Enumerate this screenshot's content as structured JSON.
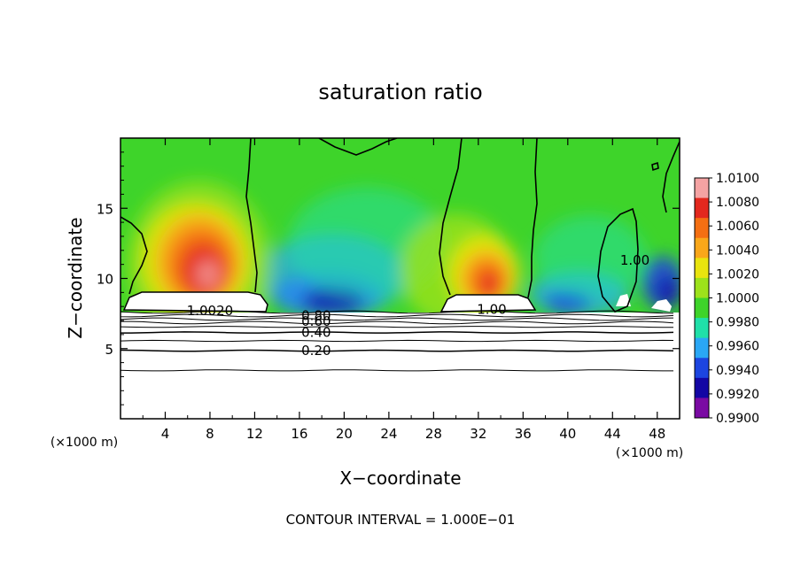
{
  "chart_data": {
    "type": "heatmap",
    "title": "saturation ratio",
    "xlabel": "X−coordinate",
    "ylabel": "Z−coordinate",
    "x_unit_left": "(×1000 m)",
    "x_unit_right": "(×1000 m)",
    "xlim": [
      0,
      50
    ],
    "ylim": [
      0,
      20
    ],
    "xticks": [
      4,
      8,
      12,
      16,
      20,
      24,
      28,
      32,
      36,
      40,
      44,
      48
    ],
    "yticks": [
      5,
      10,
      15
    ],
    "footer": "CONTOUR INTERVAL = 1.000E−01",
    "colorbar": {
      "labels": [
        "1.0100",
        "1.0080",
        "1.0060",
        "1.0040",
        "1.0020",
        "1.0000",
        "0.9980",
        "0.9960",
        "0.9940",
        "0.9920",
        "0.9900"
      ],
      "colors": [
        "#f4a3a3",
        "#e3281e",
        "#f46f12",
        "#f9a71a",
        "#e9e40f",
        "#9de21b",
        "#3ed42a",
        "#20e0a9",
        "#2aa7f5",
        "#1c45e0",
        "#1306a4",
        "#7a0aa3"
      ]
    },
    "contour_labels": [
      {
        "text": "1.00",
        "x": 33.2,
        "y": 7.8
      },
      {
        "text": "1.00",
        "x": 46.0,
        "y": 11.3
      },
      {
        "text": "1.0020",
        "x": 8.0,
        "y": 7.7
      },
      {
        "text": "0.80",
        "x": 17.5,
        "y": 7.35
      },
      {
        "text": "0.60",
        "x": 17.5,
        "y": 6.95
      },
      {
        "text": "0.40",
        "x": 17.5,
        "y": 6.15
      },
      {
        "text": "0.20",
        "x": 17.5,
        "y": 4.85
      }
    ],
    "field_blobs": [
      {
        "color": "#1c45e0",
        "x": 18.5,
        "y": 8.8,
        "rx": 5.0,
        "ry": 1.6,
        "opacity": 0.85
      },
      {
        "color": "#2aa7f5",
        "x": 19.0,
        "y": 10.2,
        "rx": 6.5,
        "ry": 3.0,
        "opacity": 0.7
      },
      {
        "color": "#1306a4",
        "x": 19.0,
        "y": 8.4,
        "rx": 2.8,
        "ry": 0.9,
        "opacity": 0.8
      },
      {
        "color": "#20e0a9",
        "x": 22.0,
        "y": 12.5,
        "rx": 7.0,
        "ry": 4.0,
        "opacity": 0.5
      },
      {
        "color": "#2aa7f5",
        "x": 41.0,
        "y": 8.9,
        "rx": 4.5,
        "ry": 1.6,
        "opacity": 0.75
      },
      {
        "color": "#1c45e0",
        "x": 40.0,
        "y": 8.3,
        "rx": 2.0,
        "ry": 0.8,
        "opacity": 0.8
      },
      {
        "color": "#20e0a9",
        "x": 42.0,
        "y": 11.5,
        "rx": 5.0,
        "ry": 3.0,
        "opacity": 0.5
      },
      {
        "color": "#1c45e0",
        "x": 48.5,
        "y": 9.7,
        "rx": 1.9,
        "ry": 1.9,
        "opacity": 0.85
      },
      {
        "color": "#1306a4",
        "x": 49.0,
        "y": 9.0,
        "rx": 1.1,
        "ry": 1.2,
        "opacity": 0.7
      },
      {
        "color": "#9de21b",
        "x": 30.0,
        "y": 10.6,
        "rx": 5.0,
        "ry": 4.0,
        "opacity": 0.8
      },
      {
        "color": "#9de21b",
        "x": 7.0,
        "y": 11.0,
        "rx": 6.5,
        "ry": 6.0,
        "opacity": 0.7
      },
      {
        "color": "#e9e40f",
        "x": 6.8,
        "y": 11.3,
        "rx": 5.0,
        "ry": 4.2,
        "opacity": 0.85
      },
      {
        "color": "#f9a71a",
        "x": 7.0,
        "y": 11.2,
        "rx": 3.8,
        "ry": 3.4,
        "opacity": 0.9
      },
      {
        "color": "#f46f12",
        "x": 7.2,
        "y": 11.0,
        "rx": 2.9,
        "ry": 2.6,
        "opacity": 0.9
      },
      {
        "color": "#e3281e",
        "x": 7.4,
        "y": 10.6,
        "rx": 2.0,
        "ry": 1.9,
        "opacity": 0.9
      },
      {
        "color": "#f4a3a3",
        "x": 7.8,
        "y": 10.3,
        "rx": 1.0,
        "ry": 1.0,
        "opacity": 0.8
      },
      {
        "color": "#e9e40f",
        "x": 32.5,
        "y": 10.3,
        "rx": 3.2,
        "ry": 2.8,
        "opacity": 0.9
      },
      {
        "color": "#f9a71a",
        "x": 32.7,
        "y": 10.0,
        "rx": 2.3,
        "ry": 2.0,
        "opacity": 0.9
      },
      {
        "color": "#f46f12",
        "x": 32.8,
        "y": 9.8,
        "rx": 1.6,
        "ry": 1.5,
        "opacity": 0.9
      },
      {
        "color": "#e3281e",
        "x": 33.0,
        "y": 9.6,
        "rx": 0.9,
        "ry": 0.9,
        "opacity": 0.9
      }
    ],
    "contour_lines": [
      {
        "level": "0.90",
        "y": 7.6
      },
      {
        "level": "0.80",
        "y": 7.35
      },
      {
        "level": "0.70",
        "y": 7.1
      },
      {
        "level": "0.60",
        "y": 6.85
      },
      {
        "level": "0.50",
        "y": 6.55
      },
      {
        "level": "0.40",
        "y": 6.15
      },
      {
        "level": "0.30",
        "y": 5.55
      },
      {
        "level": "0.20",
        "y": 4.85
      },
      {
        "level": "0.10",
        "y": 3.45
      }
    ]
  }
}
